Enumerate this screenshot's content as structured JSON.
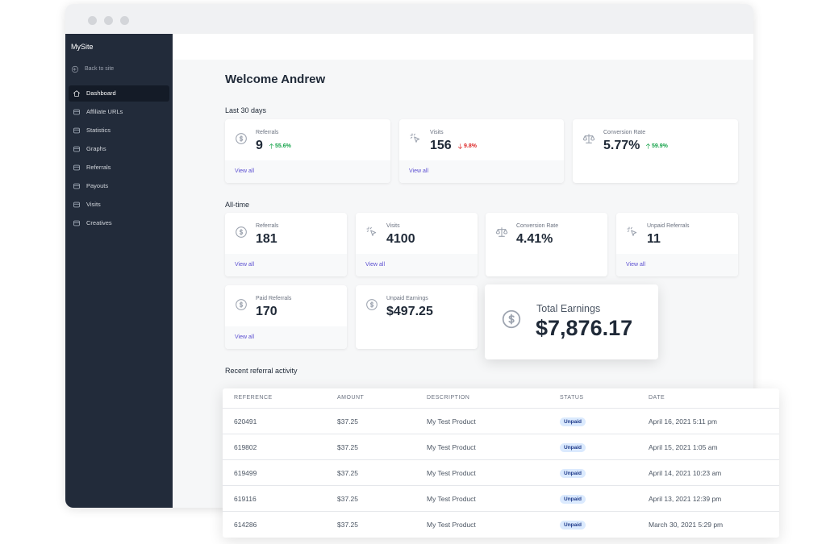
{
  "sidebar": {
    "site_name": "MySite",
    "back_link": "Back to site",
    "nav": [
      "Dashboard",
      "Affiliate URLs",
      "Statistics",
      "Graphs",
      "Referrals",
      "Payouts",
      "Visits",
      "Creatives"
    ]
  },
  "main": {
    "title": "Welcome Andrew",
    "last_30_days": {
      "heading": "Last 30 days",
      "cards": [
        {
          "label": "Referrals",
          "value": "9",
          "change": "55.6%",
          "link": "View all"
        },
        {
          "label": "Visits",
          "value": "156",
          "change": "9.8%",
          "link": "View all"
        },
        {
          "label": "Conversion Rate",
          "value": "5.77%",
          "change": "59.9%"
        }
      ]
    },
    "all_time": {
      "heading": "All-time",
      "cards": [
        {
          "label": "Referrals",
          "value": "181",
          "link": "View all"
        },
        {
          "label": "Visits",
          "value": "4100",
          "link": "View all"
        },
        {
          "label": "Conversion Rate",
          "value": "4.41%"
        },
        {
          "label": "Unpaid Referrals",
          "value": "11",
          "link": "View all"
        },
        {
          "label": "Paid Referrals",
          "value": "170",
          "link": "View all"
        },
        {
          "label": "Unpaid Earnings",
          "value": "$497.25"
        }
      ]
    },
    "total_earnings": {
      "label": "Total Earnings",
      "value": "$7,876.17"
    },
    "recent_activity": {
      "heading": "Recent referral activity",
      "table": {
        "columns": [
          "REFERENCE",
          "AMOUNT",
          "DESCRIPTION",
          "STATUS",
          "DATE"
        ],
        "rows": [
          [
            "620491",
            "$37.25",
            "My Test Product",
            "Unpaid",
            "April 16, 2021 5:11 pm"
          ],
          [
            "619802",
            "$37.25",
            "My Test Product",
            "Unpaid",
            "April 15, 2021 1:05 am"
          ],
          [
            "619499",
            "$37.25",
            "My Test Product",
            "Unpaid",
            "April 14, 2021 10:23 am"
          ],
          [
            "619116",
            "$37.25",
            "My Test Product",
            "Unpaid",
            "April 13, 2021 12:39 pm"
          ],
          [
            "614286",
            "$37.25",
            "My Test Product",
            "Unpaid",
            "March 30, 2021 5:29 pm"
          ]
        ]
      }
    }
  }
}
